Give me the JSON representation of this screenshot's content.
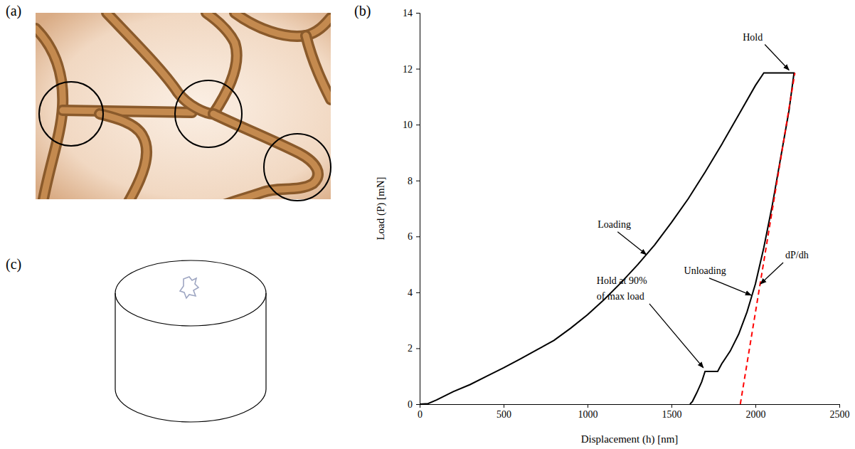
{
  "panel_labels": [
    "(a)",
    "(b)",
    "(c)"
  ],
  "chart_data": {
    "type": "line",
    "x_label": "Displacement (h) [nm]",
    "y_label": "Load (P) [mN]",
    "xlim": [
      0,
      2500
    ],
    "ylim": [
      0,
      14
    ],
    "xticks": [
      0,
      500,
      1000,
      1500,
      2000,
      2500
    ],
    "yticks": [
      0,
      2,
      4,
      6,
      8,
      10,
      12,
      14
    ],
    "grid": false,
    "series": [
      {
        "color": "#000000",
        "line_style": "solid",
        "x": [
          0,
          50,
          100,
          200,
          300,
          400,
          500,
          600,
          700,
          800,
          900,
          1000,
          1100,
          1200,
          1300,
          1400,
          1500,
          1600,
          1700,
          1800,
          1900,
          2000,
          2050,
          2230,
          2200,
          2150,
          2100,
          2050,
          2000,
          1950,
          1900,
          1850,
          1800,
          1775,
          1700,
          1680,
          1650,
          1625,
          1610
        ],
        "values": [
          0,
          0.02,
          0.15,
          0.45,
          0.7,
          1.0,
          1.3,
          1.62,
          1.95,
          2.28,
          2.72,
          3.2,
          3.75,
          4.35,
          5.0,
          5.7,
          6.5,
          7.35,
          8.3,
          9.3,
          10.35,
          11.4,
          11.85,
          11.85,
          10.5,
          8.8,
          7.1,
          5.6,
          4.3,
          3.3,
          2.5,
          1.9,
          1.45,
          1.17,
          1.17,
          0.8,
          0.4,
          0.1,
          0
        ]
      },
      {
        "color": "#ff0000",
        "line_style": "dashed",
        "x": [
          1910,
          2235
        ],
        "values": [
          0,
          11.85
        ]
      }
    ],
    "annotations": [
      {
        "text": "Hold",
        "x": 2200,
        "y": 11.95
      },
      {
        "text": "Loading",
        "x": 1350,
        "y": 5.35
      },
      {
        "text": "Unloading",
        "x": 1975,
        "y": 3.9
      },
      {
        "text": "Hold at 90% of max load",
        "x": 1690,
        "y": 1.3
      },
      {
        "text": "dP/dh",
        "x": 2030,
        "y": 4.3
      }
    ]
  }
}
